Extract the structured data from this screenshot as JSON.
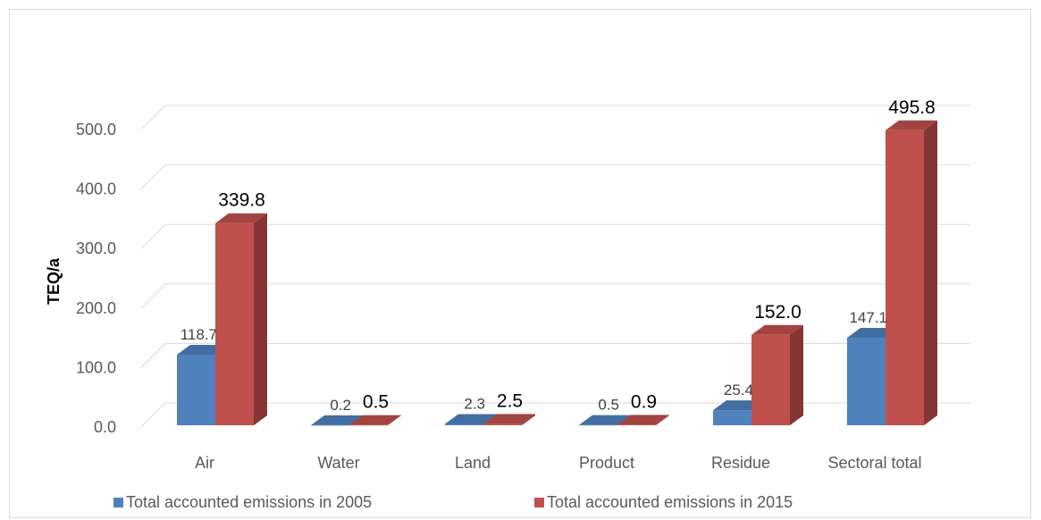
{
  "chart_data": {
    "type": "bar",
    "ylabel": "TEQ/a",
    "xlabel": "",
    "ylim": [
      0,
      500
    ],
    "yticks": [
      "0.0",
      "100.0",
      "200.0",
      "300.0",
      "400.0",
      "500.0"
    ],
    "categories": [
      "Air",
      "Water",
      "Land",
      "Product",
      "Residue",
      "Sectoral total"
    ],
    "series": [
      {
        "name": "Total accounted emissions in 2005",
        "values": [
          118.7,
          0.2,
          2.3,
          0.5,
          25.4,
          147.1
        ],
        "labels": [
          "118.7",
          "0.2",
          "2.3",
          "0.5",
          "25.4",
          "147.1"
        ],
        "color": "#4f81bd"
      },
      {
        "name": "Total accounted emissions in 2015",
        "values": [
          339.8,
          0.5,
          2.5,
          0.9,
          152.0,
          495.8
        ],
        "labels": [
          "339.8",
          "0.5",
          "2.5",
          "0.9",
          "152.0",
          "495.8"
        ],
        "color": "#c0504d"
      }
    ],
    "grid": true,
    "legend_position": "bottom",
    "style": "3d-clustered-column"
  }
}
